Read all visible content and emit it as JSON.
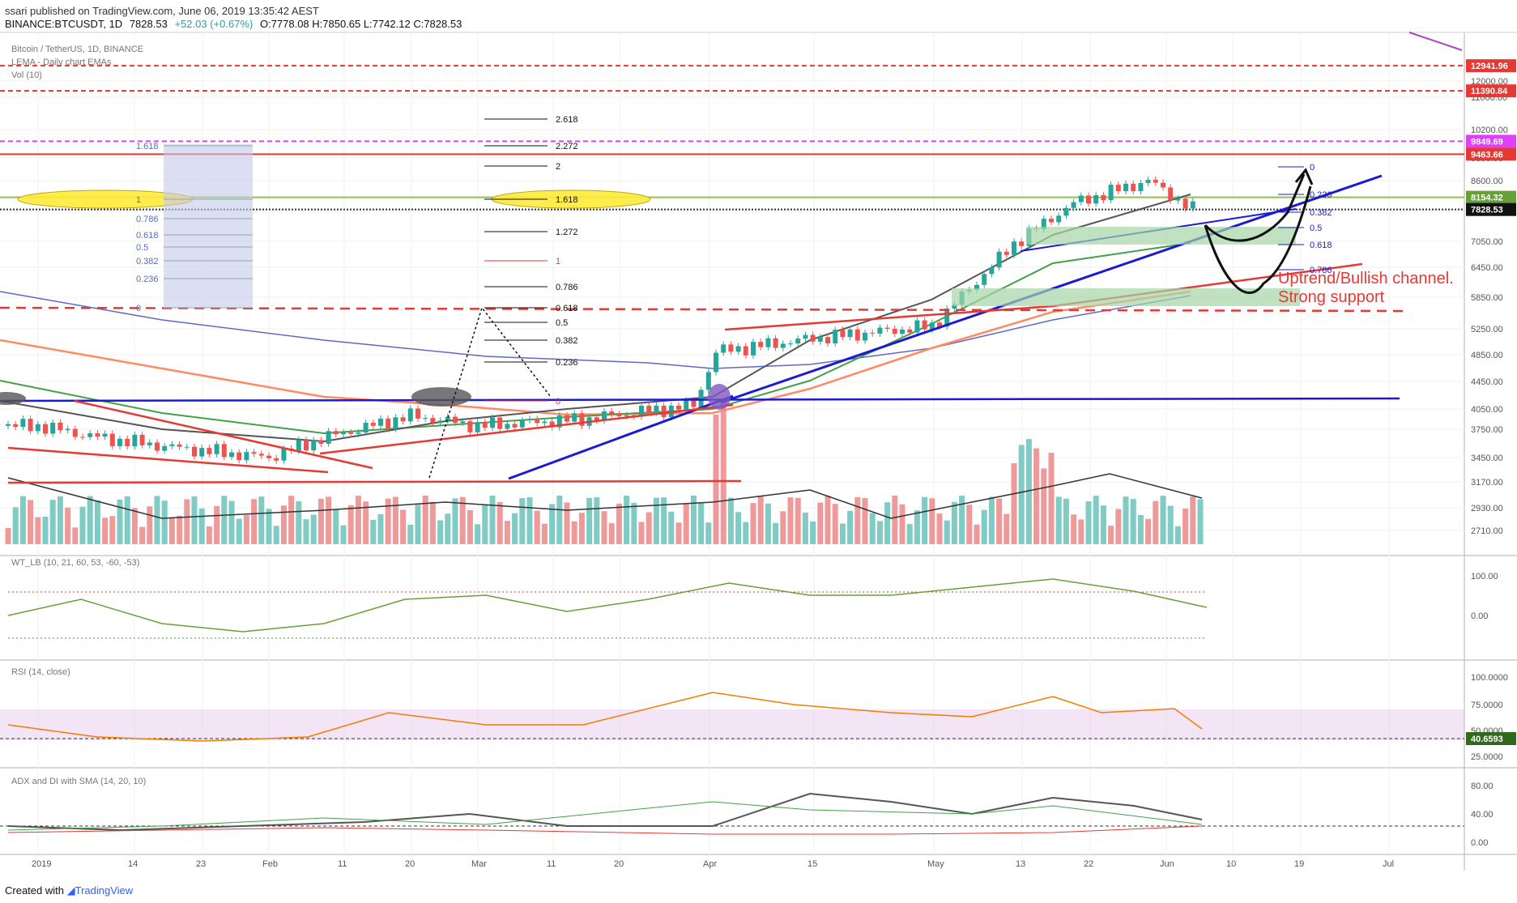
{
  "header": {
    "published": "ssari published on TradingView.com, June 06, 2019 13:35:42 AEST",
    "symbol": "BINANCE:BTCUSDT, 1D",
    "close": "7828.53",
    "change": "+52.03 (+0.67%)",
    "ohlc": "O:7778.08 H:7850.65 L:7742.12 C:7828.53"
  },
  "footer": {
    "created_with": "Created with",
    "brand": "TradingView"
  },
  "panes": {
    "main_title": "Bitcoin / TetherUS, 1D, BINANCE",
    "main_sub": "LEMA - Daily chart EMAs",
    "vol": "Vol (10)",
    "wt": "WT_LB (10, 21, 60, 53, -60, -53)",
    "rsi": "RSI (14, close)",
    "adx": "ADX and DI with SMA (14, 20, 10)"
  },
  "annotation": {
    "line1": "Uptrend/Bullish channel.",
    "line2": "Strong support"
  },
  "price_labels": [
    {
      "text": "12941.96",
      "color": "#e53935",
      "price": 12941.96
    },
    {
      "text": "11390.84",
      "color": "#e53935",
      "price": 11390.84
    },
    {
      "text": "9849.69",
      "color": "#e040fb",
      "price": 9849.69
    },
    {
      "text": "9463.66",
      "color": "#e53935",
      "price": 9463.66
    },
    {
      "text": "8154.32",
      "color": "#689f38",
      "price": 8154.32
    },
    {
      "text": "7828.53",
      "color": "#111111",
      "price": 7828.53
    }
  ],
  "colors": {
    "up": "#26a69a",
    "down": "#ef5350",
    "upVol": "#80cbc4",
    "downVol": "#ef9a9a"
  },
  "chart_data": [
    {
      "type": "candlestick",
      "title": "Bitcoin / TetherUS, 1D, BINANCE",
      "y_axis_ticks": [
        "12000.00",
        "11000.00",
        "10200.00",
        "9350.00",
        "8600.00",
        "7800.00",
        "7050.00",
        "6450.00",
        "5850.00",
        "5250.00",
        "4850.00",
        "4450.00",
        "4050.00",
        "3750.00",
        "3450.00",
        "3170.00",
        "2930.00",
        "2710.00"
      ],
      "x_axis_ticks": [
        "2019",
        "14",
        "23",
        "Feb",
        "11",
        "20",
        "Mar",
        "11",
        "20",
        "Apr",
        "15",
        "May",
        "13",
        "22",
        "Jun",
        "10",
        "19",
        "Jul"
      ],
      "close_approx": [
        {
          "date": "2019-01-01",
          "close": 3800
        },
        {
          "date": "2019-01-10",
          "close": 3650
        },
        {
          "date": "2019-01-20",
          "close": 3550
        },
        {
          "date": "2019-02-01",
          "close": 3450
        },
        {
          "date": "2019-02-08",
          "close": 3650
        },
        {
          "date": "2019-02-20",
          "close": 3950
        },
        {
          "date": "2019-03-01",
          "close": 3800
        },
        {
          "date": "2019-03-15",
          "close": 3900
        },
        {
          "date": "2019-03-30",
          "close": 4100
        },
        {
          "date": "2019-04-02",
          "close": 4900
        },
        {
          "date": "2019-04-15",
          "close": 5100
        },
        {
          "date": "2019-05-01",
          "close": 5300
        },
        {
          "date": "2019-05-12",
          "close": 7000
        },
        {
          "date": "2019-05-20",
          "close": 8000
        },
        {
          "date": "2019-05-30",
          "close": 8600
        },
        {
          "date": "2019-06-05",
          "close": 7828.53
        }
      ],
      "fib_left": [
        "1.618",
        "1",
        "0.786",
        "0.618",
        "0.5",
        "0.382",
        "0.236",
        "0"
      ],
      "fib_mid": [
        "2.618",
        "2.272",
        "2",
        "1.618",
        "1.272",
        "1",
        "0.786",
        "0.618",
        "0.5",
        "0.382",
        "0.236",
        "0"
      ],
      "fib_right": [
        "0",
        "0.236",
        "0.382",
        "0.5",
        "0.618",
        "0.786"
      ]
    },
    {
      "type": "bar",
      "name": "Vol (10)"
    },
    {
      "type": "line",
      "name": "WT_LB",
      "y_axis_ticks": [
        "100.00",
        "0.00"
      ]
    },
    {
      "type": "line",
      "name": "RSI",
      "y_axis_ticks": [
        "100.0000",
        "75.0000",
        "50.0000",
        "25.0000"
      ],
      "last_value": "40.6593"
    },
    {
      "type": "line",
      "name": "ADX",
      "y_axis_ticks": [
        "80.00",
        "40.00",
        "0.00"
      ]
    }
  ]
}
